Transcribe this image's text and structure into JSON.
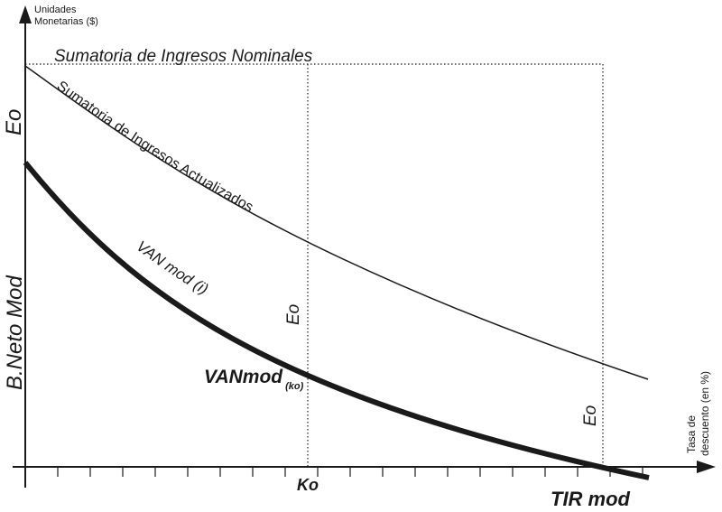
{
  "axes": {
    "y_title_line1": "Unidades",
    "y_title_line2": "Monetarias ($)",
    "x_title_line1": "Tasa de",
    "x_title_line2": "descuento  (en %)"
  },
  "labels": {
    "nominal_income": "Sumatoria de Ingresos Nominales",
    "discounted_income": "Sumatoria de Ingresos Actualizados",
    "van_curve": "VAN mod (i)",
    "vanmod_main": "VANmod",
    "vanmod_sub": "(ko)",
    "eo_left": "Eo",
    "eo_mid": "Eo",
    "eo_right": "Eo",
    "bneto": "B.Neto Mod",
    "ko": "Ko",
    "tir": "TIR mod"
  }
}
